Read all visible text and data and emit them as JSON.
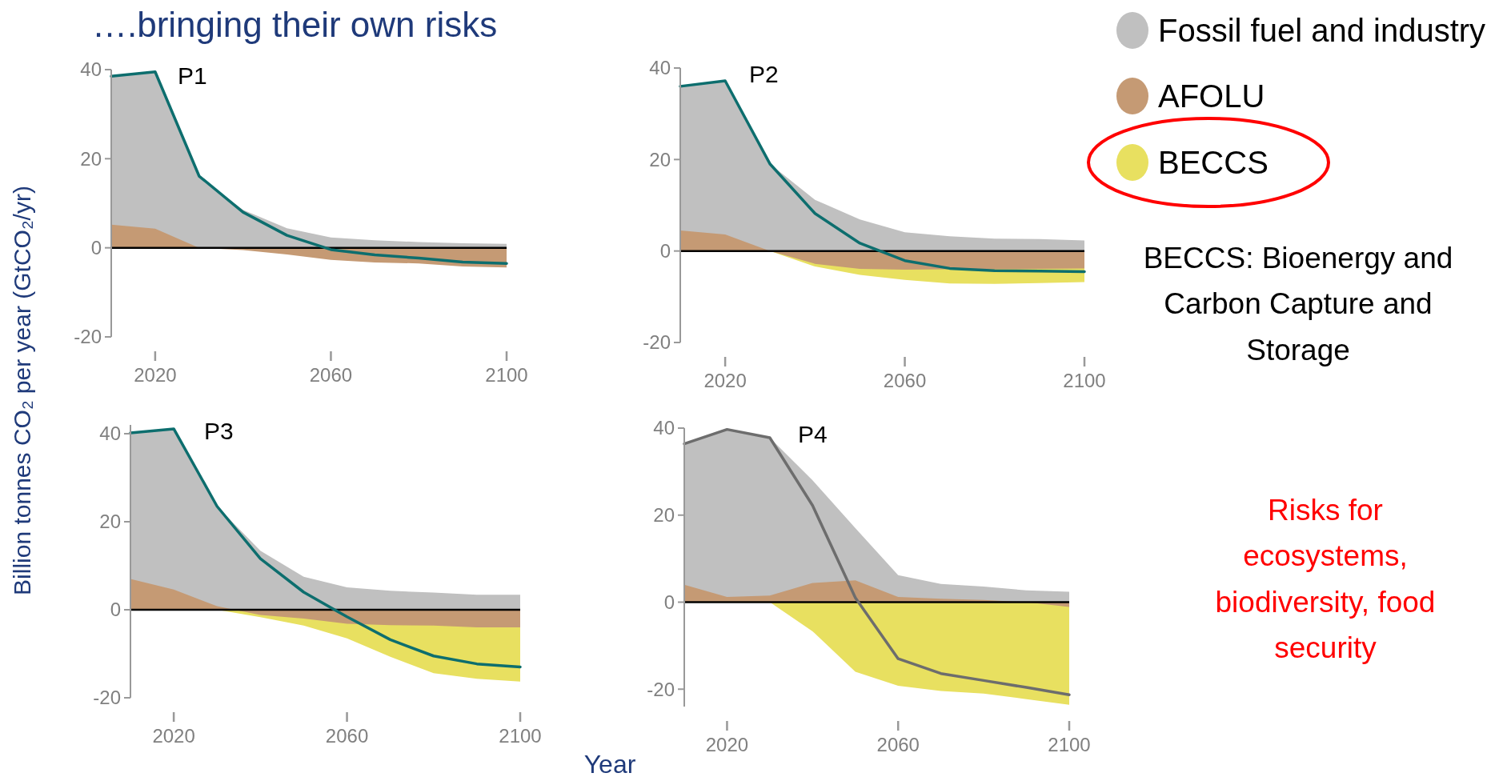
{
  "chart_data": [
    {
      "type": "area",
      "title": "P1",
      "ylabel": "Billion tonnes CO₂ per year (GtCO₂/yr)",
      "annotations": [
        "….bringing their own risks",
        "BECCS: Bioenergy and Carbon Capture and Storage",
        "Risks for ecosystems, biodiversity, food security"
      ],
      "x": [
        2010,
        2020,
        2030,
        2040,
        2050,
        2060,
        2070,
        2080,
        2090,
        2100
      ],
      "xlim": [
        2010,
        2100
      ],
      "xticks": [
        2020,
        2060,
        2100
      ],
      "ylim": [
        -20,
        40
      ],
      "yticks": [
        -20,
        0,
        20,
        40
      ],
      "ref_lines": [
        {
          "axis": "y",
          "value": 0,
          "color": "#000000"
        }
      ],
      "series": [
        {
          "color": "#c0c0c0",
          "values": [
            38.5,
            39.5,
            16,
            8.5,
            4.4,
            2.3,
            1.7,
            1.3,
            1.0,
            0.9
          ]
        },
        {
          "color": "#c59a74",
          "values": [
            5.2,
            4.3,
            0,
            -0.5,
            -1.5,
            -2.7,
            -3.3,
            -3.5,
            -4.2,
            -4.4
          ]
        },
        {
          "type": "line",
          "color": "#0d6e6e",
          "values": [
            38.5,
            39.5,
            16.1,
            8.0,
            2.8,
            -0.4,
            -1.6,
            -2.3,
            -3.2,
            -3.5
          ]
        }
      ]
    },
    {
      "type": "area",
      "title": "P2",
      "legend": "right",
      "x": [
        2010,
        2020,
        2030,
        2040,
        2050,
        2060,
        2070,
        2080,
        2090,
        2100
      ],
      "xlim": [
        2010,
        2100
      ],
      "xticks": [
        2020,
        2060,
        2100
      ],
      "ylim": [
        -20,
        40
      ],
      "yticks": [
        -20,
        0,
        20,
        40
      ],
      "ref_lines": [
        {
          "axis": "y",
          "value": 0,
          "color": "#000000"
        }
      ],
      "series": [
        {
          "name": "Fossil fuel and industry",
          "color": "#c0c0c0",
          "values": [
            36,
            37.2,
            19,
            11.2,
            6.9,
            4.1,
            3.2,
            2.7,
            2.6,
            2.3
          ]
        },
        {
          "name": "AFOLU",
          "color": "#c59a74",
          "values": [
            4.5,
            3.6,
            0,
            -2.8,
            -3.9,
            -4.1,
            -4.0,
            -4.0,
            -3.9,
            -3.8
          ]
        },
        {
          "name": "BECCS",
          "color": "#e8e060",
          "values": [
            null,
            null,
            0,
            -3.4,
            -5.2,
            -6.3,
            -7.1,
            -7.2,
            -7.0,
            -6.8
          ]
        },
        {
          "type": "line",
          "color": "#0d6e6e",
          "values": [
            36,
            37.2,
            19.0,
            8.2,
            1.7,
            -2.1,
            -3.8,
            -4.3,
            -4.4,
            -4.5
          ]
        }
      ]
    },
    {
      "type": "area",
      "title": "P3",
      "xlabel": "Year",
      "x": [
        2010,
        2020,
        2030,
        2040,
        2050,
        2060,
        2070,
        2080,
        2090,
        2100
      ],
      "xlim": [
        2010,
        2100
      ],
      "xticks": [
        2020,
        2060,
        2100
      ],
      "ylim": [
        -20,
        42
      ],
      "yticks": [
        -20,
        0,
        20,
        40
      ],
      "ref_lines": [
        {
          "axis": "y",
          "value": 0,
          "color": "#000000"
        }
      ],
      "series": [
        {
          "color": "#c0c0c0",
          "values": [
            40.2,
            41.1,
            23.5,
            13.4,
            7.5,
            5.1,
            4.3,
            3.9,
            3.4,
            3.4
          ]
        },
        {
          "color": "#c59a74",
          "values": [
            7.0,
            4.6,
            0.8,
            -1.2,
            -2.0,
            -3.2,
            -3.5,
            -3.6,
            -4.0,
            -4.0
          ]
        },
        {
          "color": "#e8e060",
          "values": [
            null,
            null,
            0,
            -1.7,
            -3.6,
            -6.5,
            -10.7,
            -14.4,
            -15.7,
            -16.3
          ]
        },
        {
          "type": "line",
          "color": "#0d6e6e",
          "values": [
            40.2,
            41.1,
            23.5,
            11.6,
            4.0,
            -1.6,
            -6.8,
            -10.5,
            -12.3,
            -13.0
          ]
        }
      ]
    },
    {
      "type": "area",
      "title": "P4",
      "x": [
        2010,
        2020,
        2030,
        2040,
        2050,
        2060,
        2070,
        2080,
        2090,
        2100
      ],
      "xlim": [
        2010,
        2100
      ],
      "xticks": [
        2020,
        2060,
        2100
      ],
      "ylim": [
        -24,
        40
      ],
      "yticks": [
        -20,
        0,
        20,
        40
      ],
      "ref_lines": [
        {
          "axis": "y",
          "value": 0,
          "color": "#000000"
        }
      ],
      "series": [
        {
          "color": "#c0c0c0",
          "values": [
            36.6,
            39.7,
            37.8,
            28,
            17,
            6.2,
            4.2,
            3.6,
            2.7,
            2.4
          ]
        },
        {
          "color": "#c59a74",
          "values": [
            4.0,
            1.2,
            1.5,
            4.4,
            5.0,
            1.2,
            0.8,
            0.5,
            0,
            -1.1
          ]
        },
        {
          "color": "#e8e060",
          "values": [
            null,
            null,
            0,
            -6.7,
            -16.0,
            -19.2,
            -20.4,
            -21.0,
            -22.3,
            -23.6
          ]
        },
        {
          "type": "line",
          "color": "#6d6d6d",
          "values": [
            36.4,
            39.7,
            37.8,
            22.2,
            1.0,
            -13.0,
            -16.4,
            -18.0,
            -19.6,
            -21.3
          ]
        }
      ]
    }
  ]
}
